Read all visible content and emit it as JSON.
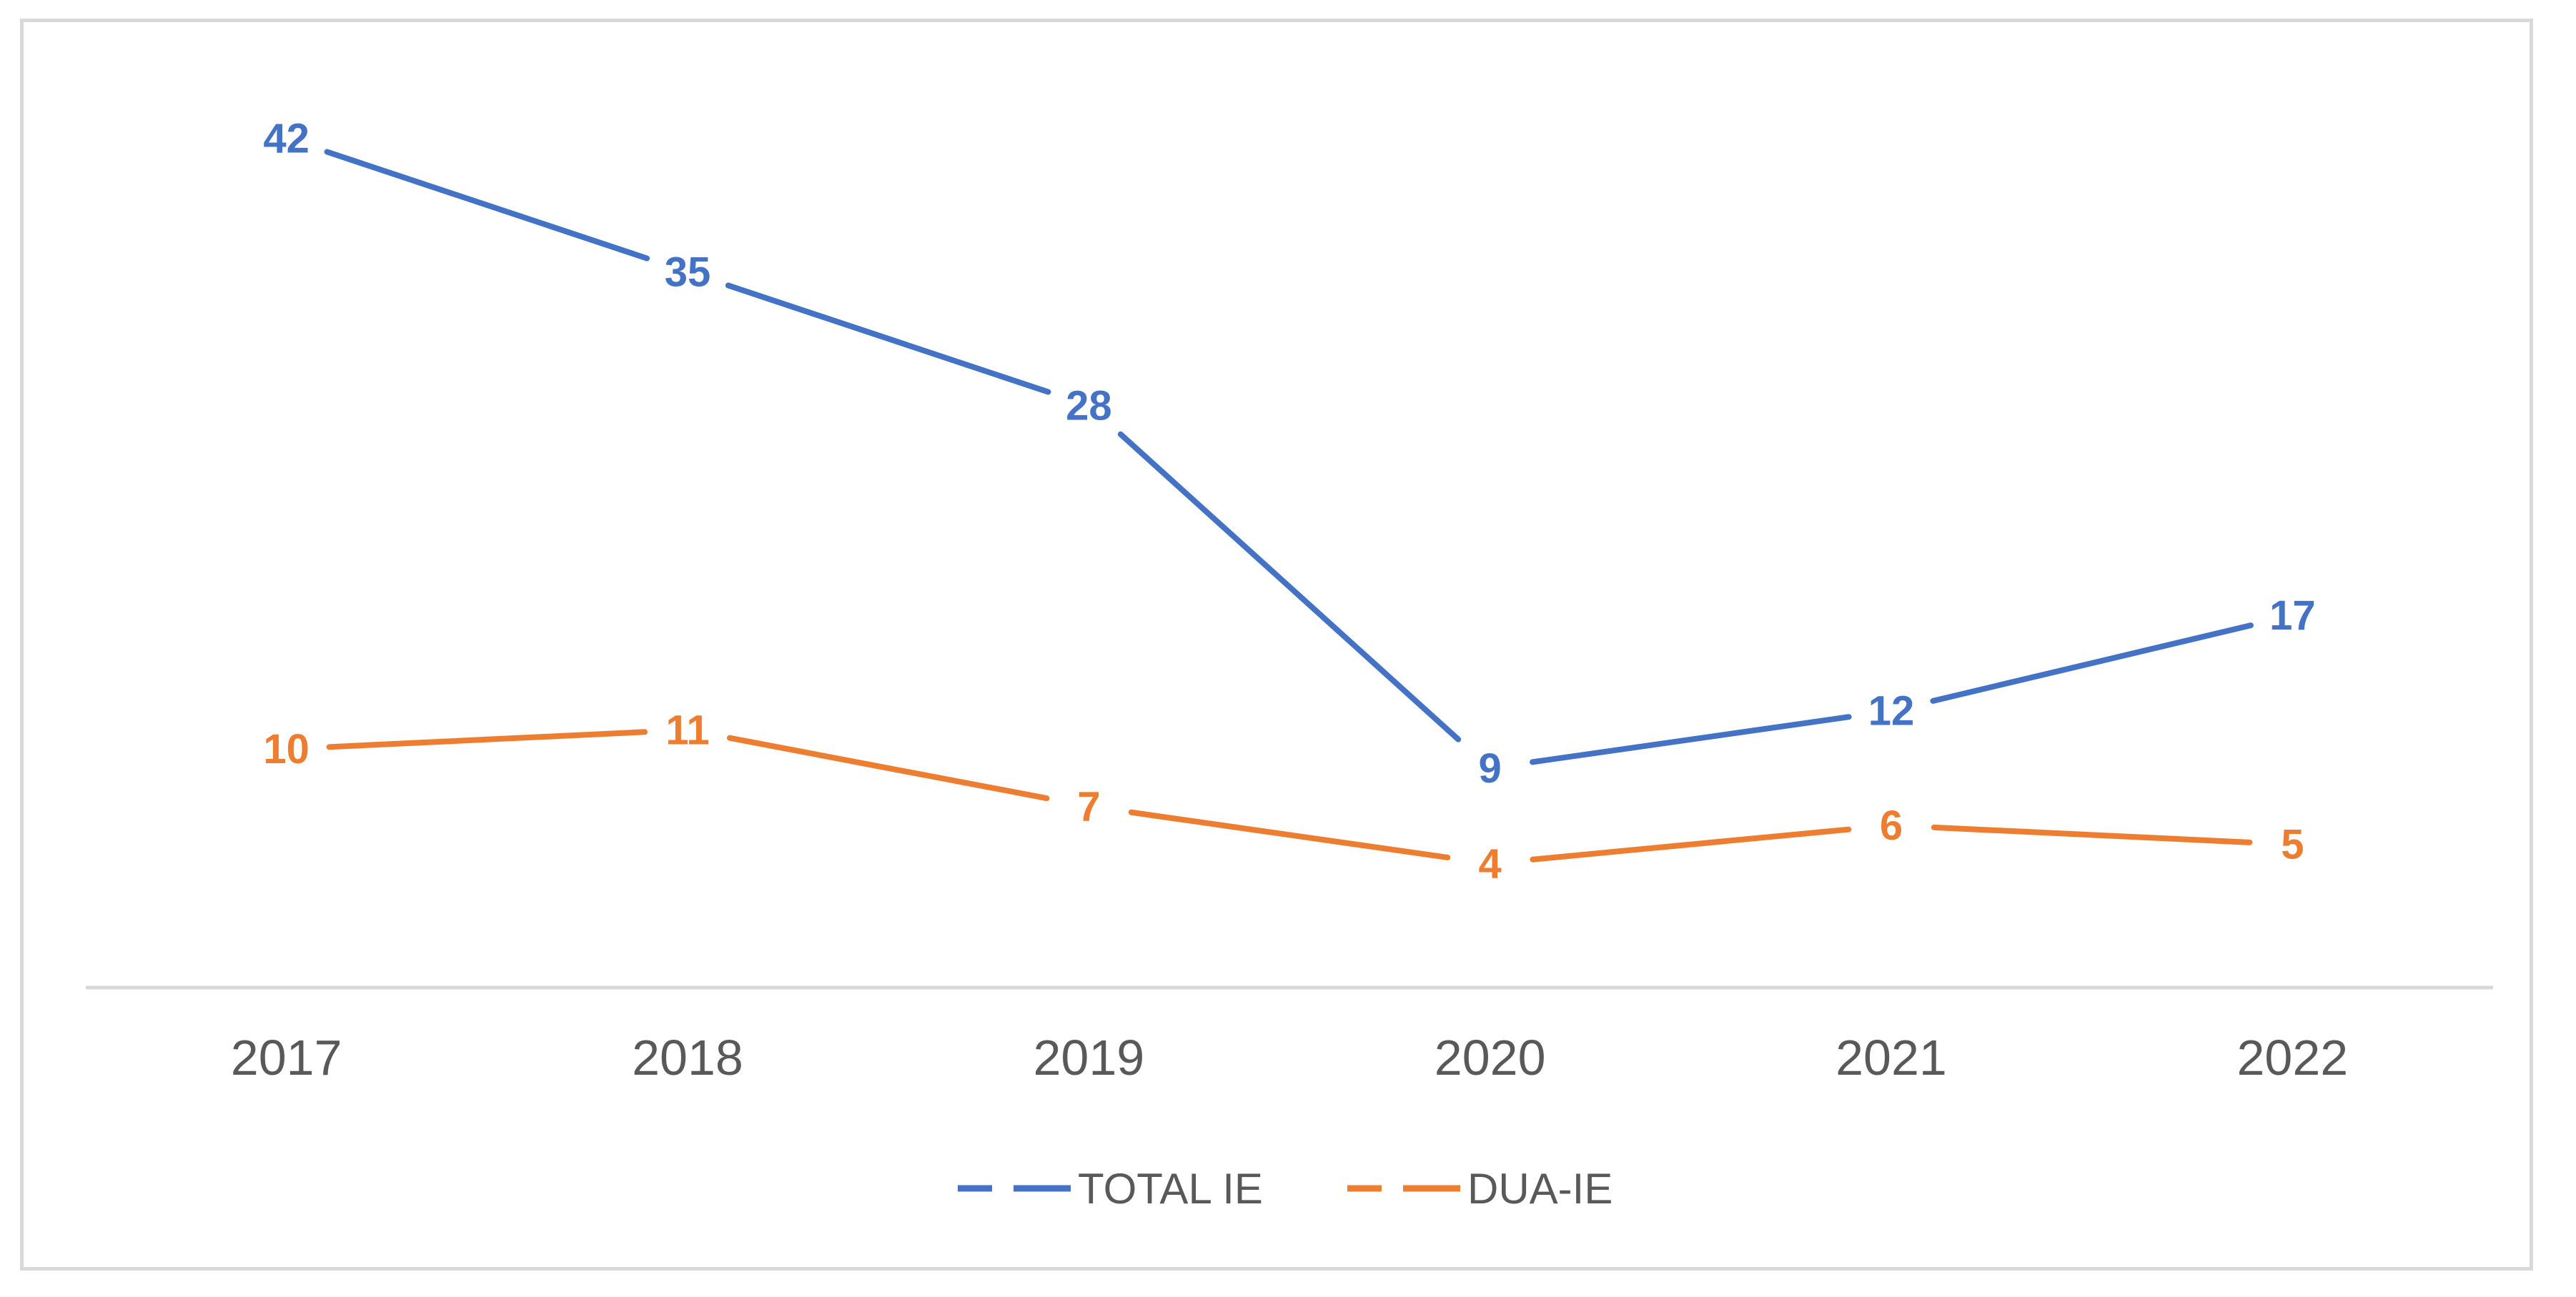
{
  "chart_data": {
    "type": "line",
    "title": "",
    "xlabel": "",
    "ylabel": "",
    "categories": [
      "2017",
      "2018",
      "2019",
      "2020",
      "2021",
      "2022"
    ],
    "series": [
      {
        "name": "TOTAL IE",
        "values": [
          42,
          35,
          28,
          9,
          12,
          17
        ],
        "color": "#4472c4"
      },
      {
        "name": "DUA-IE",
        "values": [
          10,
          11,
          7,
          4,
          6,
          5
        ],
        "color": "#ed7d31"
      }
    ],
    "ylim": [
      -2.5,
      47
    ],
    "grid": false,
    "legend": "bottom"
  }
}
